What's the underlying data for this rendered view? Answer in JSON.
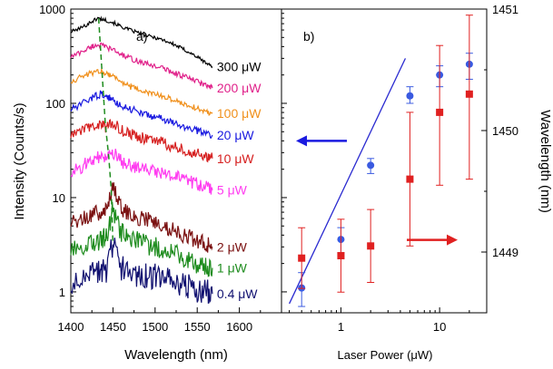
{
  "chart_data": [
    {
      "type": "line",
      "panel_label": "a)",
      "xlabel": "Wavelength (nm)",
      "ylabel": "Intensity (Counts/s)",
      "xlim": [
        1400,
        1650
      ],
      "ylim": [
        0.6,
        1000
      ],
      "y_scale": "log",
      "x_ticks": [
        "1400",
        "1450",
        "1500",
        "1550",
        "1600"
      ],
      "y_ticks": [
        "1",
        "10",
        "100",
        "1000"
      ],
      "grid": false,
      "series": [
        {
          "name": "300 μW",
          "color": "#000000",
          "x": [
            1400,
            1415,
            1425,
            1432,
            1440,
            1450,
            1460,
            1470,
            1480,
            1490,
            1500,
            1510,
            1520,
            1530,
            1540,
            1550,
            1560,
            1568
          ],
          "y": [
            570,
            650,
            740,
            800,
            770,
            720,
            650,
            600,
            560,
            520,
            500,
            470,
            430,
            390,
            350,
            310,
            270,
            245
          ]
        },
        {
          "name": "200 μW",
          "color": "#e0218a",
          "x": [
            1400,
            1415,
            1425,
            1432,
            1440,
            1450,
            1460,
            1470,
            1480,
            1490,
            1500,
            1510,
            1520,
            1530,
            1540,
            1550,
            1560,
            1568
          ],
          "y": [
            310,
            360,
            400,
            420,
            400,
            370,
            330,
            300,
            280,
            260,
            250,
            235,
            215,
            200,
            185,
            170,
            155,
            145
          ]
        },
        {
          "name": "100 μW",
          "color": "#f0901c",
          "x": [
            1400,
            1415,
            1425,
            1435,
            1442,
            1450,
            1460,
            1470,
            1480,
            1490,
            1500,
            1510,
            1520,
            1530,
            1540,
            1550,
            1560,
            1568
          ],
          "y": [
            170,
            195,
            210,
            220,
            210,
            195,
            170,
            150,
            140,
            130,
            125,
            118,
            110,
            102,
            95,
            88,
            82,
            78
          ]
        },
        {
          "name": "20 μW",
          "color": "#1a1ae0",
          "x": [
            1400,
            1415,
            1425,
            1435,
            1442,
            1450,
            1460,
            1470,
            1480,
            1490,
            1500,
            1510,
            1520,
            1530,
            1540,
            1550,
            1560,
            1568
          ],
          "y": [
            85,
            100,
            115,
            125,
            118,
            108,
            95,
            88,
            82,
            75,
            72,
            68,
            62,
            58,
            55,
            51,
            49,
            46
          ]
        },
        {
          "name": "10 μW",
          "color": "#d62020",
          "x": [
            1400,
            1415,
            1425,
            1435,
            1442,
            1450,
            1460,
            1470,
            1480,
            1490,
            1500,
            1510,
            1520,
            1530,
            1540,
            1550,
            1560,
            1568
          ],
          "y": [
            45,
            52,
            58,
            60,
            55,
            62,
            52,
            48,
            44,
            42,
            40,
            38,
            35,
            33,
            31,
            29,
            27,
            26
          ]
        },
        {
          "name": "5 μW",
          "color": "#ff3cf0",
          "x": [
            1400,
            1415,
            1425,
            1435,
            1442,
            1450,
            1460,
            1470,
            1480,
            1490,
            1500,
            1510,
            1520,
            1530,
            1540,
            1550,
            1560,
            1568
          ],
          "y": [
            18,
            22,
            25,
            27,
            25,
            30,
            24,
            22,
            21,
            20,
            19,
            18,
            17,
            16,
            15,
            14,
            13,
            12
          ]
        },
        {
          "name": "2 μW",
          "color": "#7a1010",
          "x": [
            1400,
            1415,
            1425,
            1435,
            1442,
            1450,
            1460,
            1470,
            1480,
            1490,
            1500,
            1510,
            1520,
            1530,
            1540,
            1550,
            1560,
            1568
          ],
          "y": [
            5.2,
            6.0,
            6.6,
            7.0,
            7.4,
            13,
            7.8,
            6.8,
            6.2,
            5.8,
            5.5,
            5.0,
            4.6,
            4.2,
            3.8,
            3.5,
            3.2,
            3.0
          ]
        },
        {
          "name": "1 μW",
          "color": "#1e8c1e",
          "x": [
            1400,
            1415,
            1425,
            1435,
            1442,
            1450,
            1460,
            1470,
            1480,
            1490,
            1500,
            1510,
            1520,
            1530,
            1540,
            1550,
            1560,
            1568
          ],
          "y": [
            2.6,
            3.0,
            3.3,
            3.6,
            3.8,
            7.5,
            4.2,
            3.6,
            3.4,
            3.2,
            3.0,
            2.8,
            2.6,
            2.4,
            2.2,
            2.0,
            1.9,
            1.8
          ]
        },
        {
          "name": "0.4 μW",
          "color": "#101070",
          "x": [
            1400,
            1415,
            1425,
            1435,
            1442,
            1450,
            1460,
            1470,
            1480,
            1490,
            1500,
            1510,
            1520,
            1530,
            1540,
            1550,
            1560,
            1568
          ],
          "y": [
            1.1,
            1.3,
            1.5,
            1.6,
            1.7,
            3.2,
            1.8,
            1.6,
            1.5,
            1.5,
            1.45,
            1.4,
            1.3,
            1.25,
            1.15,
            1.05,
            1.0,
            0.95
          ]
        }
      ],
      "peak_trace": {
        "color": "#1e8c1e",
        "x": [
          1433,
          1437,
          1441,
          1445,
          1448,
          1450
        ],
        "y": [
          800,
          220,
          60,
          27,
          12,
          3.2
        ]
      }
    },
    {
      "type": "scatter",
      "panel_label": "b)",
      "xlabel": "Laser Power (μW)",
      "ylabel_right": "Wavelength (nm)",
      "x_scale": "log",
      "xlim": [
        0.25,
        30
      ],
      "x_ticks": [
        "1",
        "10"
      ],
      "left_axis_scale": "log",
      "right_ylim": [
        1448.5,
        1451
      ],
      "right_y_ticks": [
        "1449",
        "1450",
        "1451"
      ],
      "grid": false,
      "series": [
        {
          "name": "intensity",
          "marker": "circle",
          "color": "#3a5ae0",
          "axis": "left",
          "x": [
            0.4,
            1,
            2,
            5,
            10,
            20
          ],
          "y": [
            1.1,
            3.6,
            22,
            120,
            200,
            260
          ],
          "err_low": [
            0.7,
            2.6,
            18,
            100,
            150,
            180
          ],
          "err_high": [
            1.6,
            4.8,
            26,
            150,
            250,
            340
          ]
        },
        {
          "name": "wavelength",
          "marker": "square",
          "color": "#e02020",
          "axis": "right",
          "x": [
            0.4,
            1,
            2,
            5,
            10,
            20
          ],
          "y": [
            1448.95,
            1448.97,
            1449.05,
            1449.6,
            1450.15,
            1450.3
          ],
          "err_low": [
            1448.7,
            1448.67,
            1448.75,
            1449.05,
            1449.55,
            1449.6
          ],
          "err_high": [
            1449.2,
            1449.27,
            1449.35,
            1450.15,
            1450.7,
            1450.95
          ]
        }
      ],
      "fit_line": {
        "color": "#2a2ad0",
        "x": [
          0.3,
          4.5
        ],
        "y": [
          0.75,
          300
        ]
      },
      "arrows": [
        {
          "direction": "left",
          "color": "#1a1ae0",
          "points_to": "left axis"
        },
        {
          "direction": "right",
          "color": "#e02020",
          "points_to": "right axis"
        }
      ]
    }
  ]
}
